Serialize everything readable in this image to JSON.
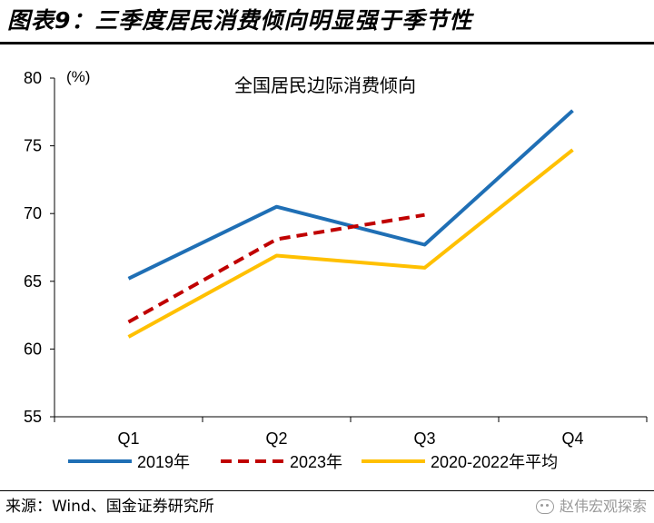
{
  "figure": {
    "title": "图表9：三季度居民消费倾向明显强于季节性",
    "source": "来源：Wind、国金证券研究所",
    "watermark": "赵伟宏观探索"
  },
  "colors": {
    "series_2019": "#1F6FB5",
    "series_2023": "#C00000",
    "series_avg": "#FFC000"
  },
  "chart_data": {
    "type": "line",
    "title": "全国居民边际消费倾向",
    "unit_label": "(%)",
    "xlabel": "",
    "ylabel": "",
    "categories": [
      "Q1",
      "Q2",
      "Q3",
      "Q4"
    ],
    "ylim": [
      55,
      80
    ],
    "yticks": [
      55,
      60,
      65,
      70,
      75,
      80
    ],
    "grid": false,
    "legend": "bottom",
    "series": [
      {
        "name": "2019年",
        "values": [
          65.2,
          70.5,
          67.7,
          77.6
        ],
        "color": "#1F6FB5",
        "dash": "solid"
      },
      {
        "name": "2023年",
        "values": [
          62.0,
          68.1,
          69.9,
          null
        ],
        "color": "#C00000",
        "dash": "dashed"
      },
      {
        "name": "2020-2022年平均",
        "values": [
          60.9,
          66.9,
          66.0,
          74.7
        ],
        "color": "#FFC000",
        "dash": "solid"
      }
    ]
  }
}
